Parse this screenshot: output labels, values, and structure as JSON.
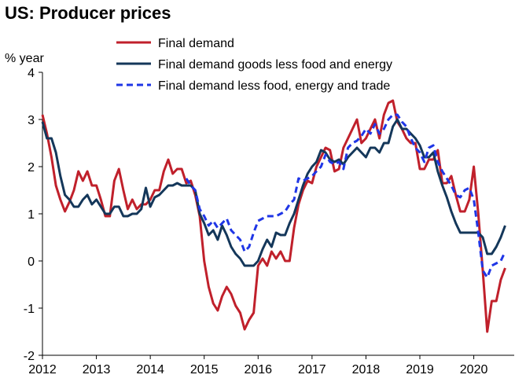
{
  "chart_data": {
    "type": "line",
    "title": "US: Producer prices",
    "ylabel": "% year",
    "xlabel": "",
    "ylim": [
      -2,
      4
    ],
    "xlim": [
      2012,
      2020.75
    ],
    "yticks": [
      -2,
      -1,
      0,
      1,
      2,
      3,
      4
    ],
    "xticks": [
      "2012",
      "2013",
      "2014",
      "2015",
      "2016",
      "2017",
      "2018",
      "2019",
      "2020"
    ],
    "grid": false,
    "legend_position": "top",
    "series": [
      {
        "name": "Final demand",
        "color": "#c0202b",
        "style": "solid",
        "points": [
          [
            2012.0,
            3.1
          ],
          [
            2012.083,
            2.7
          ],
          [
            2012.167,
            2.2
          ],
          [
            2012.25,
            1.6
          ],
          [
            2012.333,
            1.3
          ],
          [
            2012.417,
            1.05
          ],
          [
            2012.5,
            1.25
          ],
          [
            2012.583,
            1.5
          ],
          [
            2012.667,
            1.9
          ],
          [
            2012.75,
            1.7
          ],
          [
            2012.833,
            1.9
          ],
          [
            2012.917,
            1.6
          ],
          [
            2013.0,
            1.6
          ],
          [
            2013.083,
            1.3
          ],
          [
            2013.167,
            0.95
          ],
          [
            2013.25,
            0.95
          ],
          [
            2013.333,
            1.7
          ],
          [
            2013.417,
            1.95
          ],
          [
            2013.5,
            1.5
          ],
          [
            2013.583,
            1.1
          ],
          [
            2013.667,
            1.3
          ],
          [
            2013.75,
            1.1
          ],
          [
            2013.833,
            1.2
          ],
          [
            2013.917,
            1.2
          ],
          [
            2014.0,
            1.3
          ],
          [
            2014.083,
            1.5
          ],
          [
            2014.167,
            1.5
          ],
          [
            2014.25,
            1.9
          ],
          [
            2014.333,
            2.15
          ],
          [
            2014.417,
            1.85
          ],
          [
            2014.5,
            1.95
          ],
          [
            2014.583,
            1.95
          ],
          [
            2014.667,
            1.65
          ],
          [
            2014.75,
            1.7
          ],
          [
            2014.833,
            1.4
          ],
          [
            2014.917,
            0.95
          ],
          [
            2015.0,
            0.0
          ],
          [
            2015.083,
            -0.55
          ],
          [
            2015.167,
            -0.9
          ],
          [
            2015.25,
            -1.05
          ],
          [
            2015.333,
            -0.75
          ],
          [
            2015.417,
            -0.55
          ],
          [
            2015.5,
            -0.7
          ],
          [
            2015.583,
            -0.95
          ],
          [
            2015.667,
            -1.1
          ],
          [
            2015.75,
            -1.45
          ],
          [
            2015.833,
            -1.25
          ],
          [
            2015.917,
            -1.1
          ],
          [
            2016.0,
            -0.1
          ],
          [
            2016.083,
            0.05
          ],
          [
            2016.167,
            -0.1
          ],
          [
            2016.25,
            0.2
          ],
          [
            2016.333,
            0.05
          ],
          [
            2016.417,
            0.2
          ],
          [
            2016.5,
            0.0
          ],
          [
            2016.583,
            0.0
          ],
          [
            2016.667,
            0.7
          ],
          [
            2016.75,
            1.2
          ],
          [
            2016.833,
            1.5
          ],
          [
            2016.917,
            1.7
          ],
          [
            2017.0,
            1.65
          ],
          [
            2017.083,
            2.0
          ],
          [
            2017.167,
            2.2
          ],
          [
            2017.25,
            2.4
          ],
          [
            2017.333,
            2.35
          ],
          [
            2017.417,
            1.9
          ],
          [
            2017.5,
            1.95
          ],
          [
            2017.583,
            2.4
          ],
          [
            2017.667,
            2.6
          ],
          [
            2017.75,
            2.8
          ],
          [
            2017.833,
            3.0
          ],
          [
            2017.917,
            2.5
          ],
          [
            2018.0,
            2.6
          ],
          [
            2018.083,
            2.8
          ],
          [
            2018.167,
            3.0
          ],
          [
            2018.25,
            2.6
          ],
          [
            2018.333,
            3.1
          ],
          [
            2018.417,
            3.35
          ],
          [
            2018.5,
            3.4
          ],
          [
            2018.583,
            2.95
          ],
          [
            2018.667,
            2.8
          ],
          [
            2018.75,
            2.6
          ],
          [
            2018.833,
            2.5
          ],
          [
            2018.917,
            2.5
          ],
          [
            2019.0,
            1.95
          ],
          [
            2019.083,
            1.95
          ],
          [
            2019.167,
            2.15
          ],
          [
            2019.25,
            2.15
          ],
          [
            2019.333,
            2.35
          ],
          [
            2019.417,
            1.65
          ],
          [
            2019.5,
            1.65
          ],
          [
            2019.583,
            1.8
          ],
          [
            2019.667,
            1.4
          ],
          [
            2019.75,
            1.05
          ],
          [
            2019.833,
            1.05
          ],
          [
            2019.917,
            1.3
          ],
          [
            2020.0,
            2.0
          ],
          [
            2020.083,
            1.0
          ],
          [
            2020.167,
            -0.2
          ],
          [
            2020.25,
            -1.5
          ],
          [
            2020.333,
            -0.85
          ],
          [
            2020.417,
            -0.85
          ],
          [
            2020.5,
            -0.4
          ],
          [
            2020.583,
            -0.15
          ]
        ]
      },
      {
        "name": "Final demand goods less food and energy",
        "color": "#14375a",
        "style": "solid",
        "points": [
          [
            2012.0,
            2.95
          ],
          [
            2012.083,
            2.6
          ],
          [
            2012.167,
            2.6
          ],
          [
            2012.25,
            2.3
          ],
          [
            2012.333,
            1.8
          ],
          [
            2012.417,
            1.4
          ],
          [
            2012.5,
            1.3
          ],
          [
            2012.583,
            1.15
          ],
          [
            2012.667,
            1.15
          ],
          [
            2012.75,
            1.3
          ],
          [
            2012.833,
            1.4
          ],
          [
            2012.917,
            1.2
          ],
          [
            2013.0,
            1.3
          ],
          [
            2013.083,
            1.15
          ],
          [
            2013.167,
            1.0
          ],
          [
            2013.25,
            1.0
          ],
          [
            2013.333,
            1.15
          ],
          [
            2013.417,
            1.15
          ],
          [
            2013.5,
            0.95
          ],
          [
            2013.583,
            0.95
          ],
          [
            2013.667,
            1.0
          ],
          [
            2013.75,
            1.0
          ],
          [
            2013.833,
            1.1
          ],
          [
            2013.917,
            1.55
          ],
          [
            2014.0,
            1.15
          ],
          [
            2014.083,
            1.35
          ],
          [
            2014.167,
            1.4
          ],
          [
            2014.25,
            1.5
          ],
          [
            2014.333,
            1.6
          ],
          [
            2014.417,
            1.6
          ],
          [
            2014.5,
            1.65
          ],
          [
            2014.583,
            1.6
          ],
          [
            2014.667,
            1.6
          ],
          [
            2014.75,
            1.6
          ],
          [
            2014.833,
            1.5
          ],
          [
            2014.917,
            1.0
          ],
          [
            2015.0,
            0.8
          ],
          [
            2015.083,
            0.55
          ],
          [
            2015.167,
            0.65
          ],
          [
            2015.25,
            0.45
          ],
          [
            2015.333,
            0.75
          ],
          [
            2015.417,
            0.55
          ],
          [
            2015.5,
            0.3
          ],
          [
            2015.583,
            0.15
          ],
          [
            2015.667,
            0.05
          ],
          [
            2015.75,
            -0.1
          ],
          [
            2015.833,
            -0.1
          ],
          [
            2015.917,
            -0.1
          ],
          [
            2016.0,
            0.0
          ],
          [
            2016.083,
            0.25
          ],
          [
            2016.167,
            0.45
          ],
          [
            2016.25,
            0.3
          ],
          [
            2016.333,
            0.6
          ],
          [
            2016.417,
            0.55
          ],
          [
            2016.5,
            0.55
          ],
          [
            2016.583,
            0.8
          ],
          [
            2016.667,
            1.0
          ],
          [
            2016.75,
            1.3
          ],
          [
            2016.833,
            1.6
          ],
          [
            2016.917,
            1.85
          ],
          [
            2017.0,
            2.0
          ],
          [
            2017.083,
            2.1
          ],
          [
            2017.167,
            2.35
          ],
          [
            2017.25,
            2.3
          ],
          [
            2017.333,
            2.15
          ],
          [
            2017.417,
            2.1
          ],
          [
            2017.5,
            2.15
          ],
          [
            2017.583,
            2.05
          ],
          [
            2017.667,
            2.2
          ],
          [
            2017.75,
            2.3
          ],
          [
            2017.833,
            2.4
          ],
          [
            2017.917,
            2.3
          ],
          [
            2018.0,
            2.2
          ],
          [
            2018.083,
            2.4
          ],
          [
            2018.167,
            2.4
          ],
          [
            2018.25,
            2.3
          ],
          [
            2018.333,
            2.5
          ],
          [
            2018.417,
            2.5
          ],
          [
            2018.5,
            2.85
          ],
          [
            2018.583,
            3.0
          ],
          [
            2018.667,
            2.8
          ],
          [
            2018.75,
            2.8
          ],
          [
            2018.833,
            2.7
          ],
          [
            2018.917,
            2.6
          ],
          [
            2019.0,
            2.45
          ],
          [
            2019.083,
            2.2
          ],
          [
            2019.167,
            2.2
          ],
          [
            2019.25,
            2.3
          ],
          [
            2019.333,
            1.9
          ],
          [
            2019.417,
            1.6
          ],
          [
            2019.5,
            1.35
          ],
          [
            2019.583,
            1.05
          ],
          [
            2019.667,
            0.8
          ],
          [
            2019.75,
            0.6
          ],
          [
            2019.833,
            0.6
          ],
          [
            2019.917,
            0.6
          ],
          [
            2020.0,
            0.6
          ],
          [
            2020.083,
            0.6
          ],
          [
            2020.167,
            0.5
          ],
          [
            2020.25,
            0.15
          ],
          [
            2020.333,
            0.15
          ],
          [
            2020.417,
            0.3
          ],
          [
            2020.5,
            0.5
          ],
          [
            2020.583,
            0.75
          ]
        ]
      },
      {
        "name": "Final demand less food, energy and trade",
        "color": "#1f36e6",
        "style": "dashed",
        "points": [
          [
            2014.667,
            1.75
          ],
          [
            2014.75,
            1.6
          ],
          [
            2014.833,
            1.5
          ],
          [
            2014.917,
            1.1
          ],
          [
            2015.0,
            0.95
          ],
          [
            2015.083,
            0.75
          ],
          [
            2015.167,
            0.85
          ],
          [
            2015.25,
            0.7
          ],
          [
            2015.333,
            0.8
          ],
          [
            2015.417,
            0.9
          ],
          [
            2015.5,
            0.65
          ],
          [
            2015.583,
            0.55
          ],
          [
            2015.667,
            0.45
          ],
          [
            2015.75,
            0.2
          ],
          [
            2015.833,
            0.3
          ],
          [
            2015.917,
            0.6
          ],
          [
            2016.0,
            0.85
          ],
          [
            2016.083,
            0.9
          ],
          [
            2016.167,
            0.95
          ],
          [
            2016.25,
            0.95
          ],
          [
            2016.333,
            0.95
          ],
          [
            2016.417,
            1.0
          ],
          [
            2016.5,
            1.05
          ],
          [
            2016.583,
            1.2
          ],
          [
            2016.667,
            1.3
          ],
          [
            2016.75,
            1.75
          ],
          [
            2016.833,
            1.7
          ],
          [
            2016.917,
            1.75
          ],
          [
            2017.0,
            1.8
          ],
          [
            2017.083,
            1.9
          ],
          [
            2017.167,
            2.0
          ],
          [
            2017.25,
            2.25
          ],
          [
            2017.333,
            2.1
          ],
          [
            2017.417,
            2.05
          ],
          [
            2017.5,
            2.1
          ],
          [
            2017.583,
            1.95
          ],
          [
            2017.667,
            2.4
          ],
          [
            2017.75,
            2.5
          ],
          [
            2017.833,
            2.55
          ],
          [
            2017.917,
            2.65
          ],
          [
            2018.0,
            2.8
          ],
          [
            2018.083,
            2.7
          ],
          [
            2018.167,
            2.9
          ],
          [
            2018.25,
            2.7
          ],
          [
            2018.333,
            2.8
          ],
          [
            2018.417,
            3.0
          ],
          [
            2018.5,
            3.1
          ],
          [
            2018.583,
            3.1
          ],
          [
            2018.667,
            2.95
          ],
          [
            2018.75,
            2.85
          ],
          [
            2018.833,
            2.6
          ],
          [
            2018.917,
            2.4
          ],
          [
            2019.0,
            2.3
          ],
          [
            2019.083,
            2.1
          ],
          [
            2019.167,
            2.4
          ],
          [
            2019.25,
            2.45
          ],
          [
            2019.333,
            2.1
          ],
          [
            2019.417,
            1.9
          ],
          [
            2019.5,
            1.75
          ],
          [
            2019.583,
            1.6
          ],
          [
            2019.667,
            1.4
          ],
          [
            2019.75,
            1.35
          ],
          [
            2019.833,
            1.5
          ],
          [
            2019.917,
            1.55
          ],
          [
            2020.0,
            1.3
          ],
          [
            2020.083,
            0.6
          ],
          [
            2020.167,
            -0.2
          ],
          [
            2020.25,
            -0.35
          ],
          [
            2020.333,
            -0.1
          ],
          [
            2020.417,
            -0.05
          ],
          [
            2020.5,
            0.0
          ],
          [
            2020.583,
            0.2
          ]
        ]
      }
    ]
  }
}
